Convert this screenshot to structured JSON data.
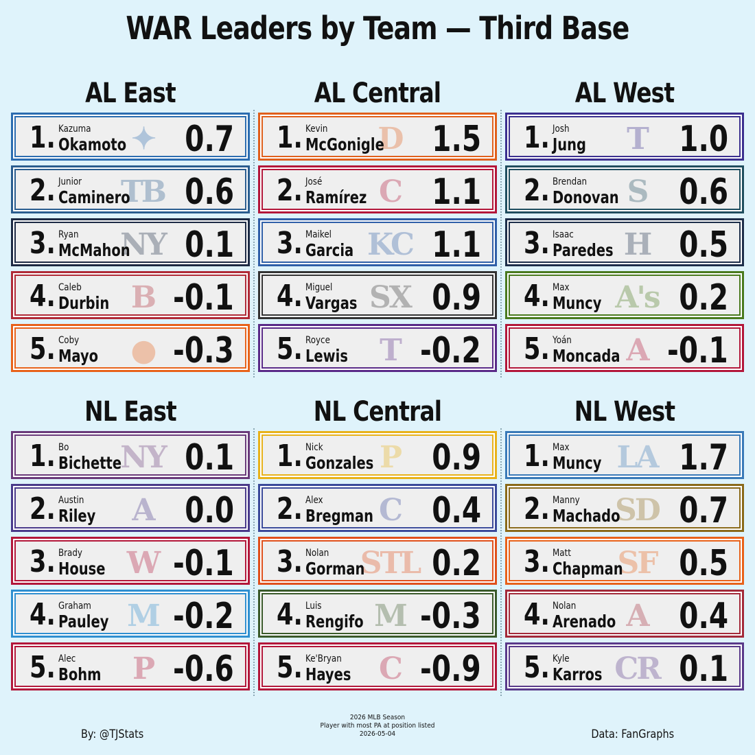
{
  "title": "WAR Leaders by Team — Third Base",
  "footer": {
    "by": "By: @TJStats",
    "source": "Data: FanGraphs",
    "notes": [
      "2026 MLB Season",
      "Player with most PA at position listed",
      "2026-05-04"
    ]
  },
  "chart_data": {
    "type": "table",
    "title": "WAR Leaders by Team — Third Base",
    "divisions": [
      {
        "name": "AL East",
        "players": [
          {
            "rank": "1.",
            "first": "Kazuma",
            "last": "Okamoto",
            "war": "0.7",
            "team_mark": "✦",
            "color": "#2b6cb0"
          },
          {
            "rank": "2.",
            "first": "Junior",
            "last": "Caminero",
            "war": "0.6",
            "team_mark": "TB",
            "color": "#2a5d8f"
          },
          {
            "rank": "3.",
            "first": "Ryan",
            "last": "McMahon",
            "war": "0.1",
            "team_mark": "NY",
            "color": "#1d2a44"
          },
          {
            "rank": "4.",
            "first": "Caleb",
            "last": "Durbin",
            "war": "-0.1",
            "team_mark": "B",
            "color": "#b02a37"
          },
          {
            "rank": "5.",
            "first": "Coby",
            "last": "Mayo",
            "war": "-0.3",
            "team_mark": "●",
            "color": "#e8621a"
          }
        ]
      },
      {
        "name": "AL Central",
        "players": [
          {
            "rank": "1.",
            "first": "Kevin",
            "last": "McGonigle",
            "war": "1.5",
            "team_mark": "D",
            "color": "#e0601c"
          },
          {
            "rank": "2.",
            "first": "José",
            "last": "Ramírez",
            "war": "1.1",
            "team_mark": "C",
            "color": "#b3173a"
          },
          {
            "rank": "3.",
            "first": "Maikel",
            "last": "Garcia",
            "war": "1.1",
            "team_mark": "KC",
            "color": "#2f5fa8"
          },
          {
            "rank": "4.",
            "first": "Miguel",
            "last": "Vargas",
            "war": "0.9",
            "team_mark": "SX",
            "color": "#333333"
          },
          {
            "rank": "5.",
            "first": "Royce",
            "last": "Lewis",
            "war": "-0.2",
            "team_mark": "T",
            "color": "#5a2a88"
          }
        ]
      },
      {
        "name": "AL West",
        "players": [
          {
            "rank": "1.",
            "first": "Josh",
            "last": "Jung",
            "war": "1.0",
            "team_mark": "T",
            "color": "#3b2f8f"
          },
          {
            "rank": "2.",
            "first": "Brendan",
            "last": "Donovan",
            "war": "0.6",
            "team_mark": "S",
            "color": "#1f4e5f"
          },
          {
            "rank": "3.",
            "first": "Isaac",
            "last": "Paredes",
            "war": "0.5",
            "team_mark": "H",
            "color": "#1d2e4a"
          },
          {
            "rank": "4.",
            "first": "Max",
            "last": "Muncy",
            "war": "0.2",
            "team_mark": "A's",
            "color": "#4a7a1e"
          },
          {
            "rank": "5.",
            "first": "Yoán",
            "last": "Moncada",
            "war": "-0.1",
            "team_mark": "A",
            "color": "#b3173a"
          }
        ]
      },
      {
        "name": "NL East",
        "players": [
          {
            "rank": "1.",
            "first": "Bo",
            "last": "Bichette",
            "war": "0.1",
            "team_mark": "NY",
            "color": "#6a3a7a"
          },
          {
            "rank": "2.",
            "first": "Austin",
            "last": "Riley",
            "war": "0.0",
            "team_mark": "A",
            "color": "#4a3a8a"
          },
          {
            "rank": "3.",
            "first": "Brady",
            "last": "House",
            "war": "-0.1",
            "team_mark": "W",
            "color": "#b3173a"
          },
          {
            "rank": "4.",
            "first": "Graham",
            "last": "Pauley",
            "war": "-0.2",
            "team_mark": "M",
            "color": "#2f8fd0"
          },
          {
            "rank": "5.",
            "first": "Alec",
            "last": "Bohm",
            "war": "-0.6",
            "team_mark": "P",
            "color": "#b3173a"
          }
        ]
      },
      {
        "name": "NL Central",
        "players": [
          {
            "rank": "1.",
            "first": "Nick",
            "last": "Gonzales",
            "war": "0.9",
            "team_mark": "P",
            "color": "#e8b21a"
          },
          {
            "rank": "2.",
            "first": "Alex",
            "last": "Bregman",
            "war": "0.4",
            "team_mark": "C",
            "color": "#3a4a9a"
          },
          {
            "rank": "3.",
            "first": "Nolan",
            "last": "Gorman",
            "war": "0.2",
            "team_mark": "STL",
            "color": "#e0501c"
          },
          {
            "rank": "4.",
            "first": "Luis",
            "last": "Rengifo",
            "war": "-0.3",
            "team_mark": "M",
            "color": "#3a5a2a"
          },
          {
            "rank": "5.",
            "first": "Ke'Bryan",
            "last": "Hayes",
            "war": "-0.9",
            "team_mark": "C",
            "color": "#b3173a"
          }
        ]
      },
      {
        "name": "NL West",
        "players": [
          {
            "rank": "1.",
            "first": "Max",
            "last": "Muncy",
            "war": "1.7",
            "team_mark": "LA",
            "color": "#3a7ab8"
          },
          {
            "rank": "2.",
            "first": "Manny",
            "last": "Machado",
            "war": "0.7",
            "team_mark": "SD",
            "color": "#8a6a1a"
          },
          {
            "rank": "3.",
            "first": "Matt",
            "last": "Chapman",
            "war": "0.5",
            "team_mark": "SF",
            "color": "#e8621a"
          },
          {
            "rank": "4.",
            "first": "Nolan",
            "last": "Arenado",
            "war": "0.4",
            "team_mark": "A",
            "color": "#a32a3a"
          },
          {
            "rank": "5.",
            "first": "Kyle",
            "last": "Karros",
            "war": "0.1",
            "team_mark": "CR",
            "color": "#5a3a8a"
          }
        ]
      }
    ]
  }
}
